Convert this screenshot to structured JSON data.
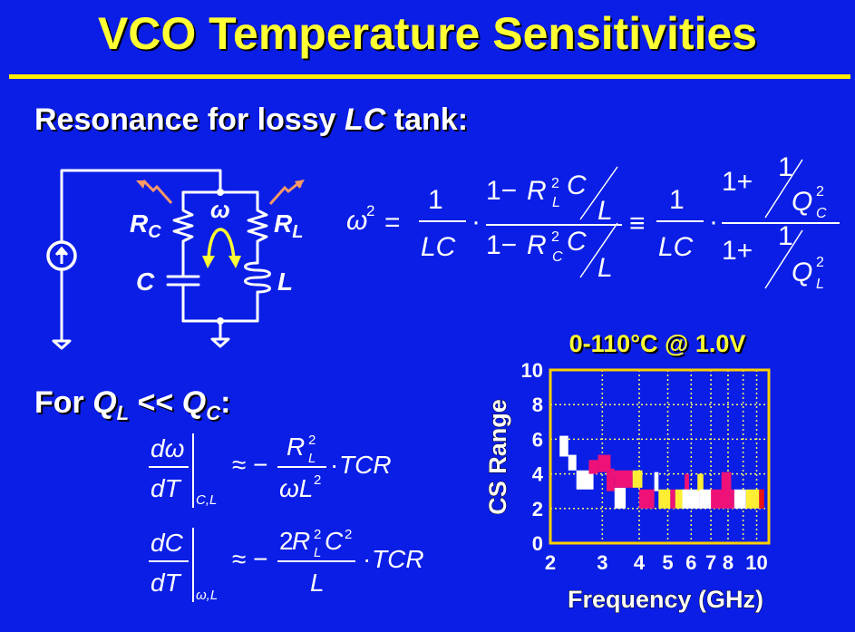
{
  "slide": {
    "title": "VCO Temperature Sensitivities",
    "heading_pre": "Resonance for lossy ",
    "heading_lc": "LC",
    "heading_post": " tank:",
    "for_pre": "For ",
    "for_q": "Q",
    "for_ql_sub": "L",
    "for_mid": " << ",
    "for_qc_sub": "C",
    "for_post": ":"
  },
  "circuit": {
    "rc_main": "R",
    "rc_sub": "C",
    "rl_main": "R",
    "rl_sub": "L",
    "omega": "ω",
    "c_label": "C",
    "l_label": "L"
  },
  "colors": {
    "background": "#0a1ee6",
    "title": "#ffff33",
    "rule": "#ffee00",
    "heat_arrow": "#ff9966",
    "omega_arrow": "#ffff33",
    "chart_border": "#ffd000",
    "chart_grid": "#ffff66"
  },
  "chart_data": {
    "type": "heatmap",
    "title": "0-110°C @ 1.0V",
    "xlabel": "Frequency (GHz)",
    "ylabel": "CS Range",
    "x_scale": "log",
    "xlim": [
      2,
      11
    ],
    "ylim": [
      0,
      10
    ],
    "x_ticks": [
      2,
      3,
      4,
      5,
      6,
      7,
      8,
      10
    ],
    "y_ticks": [
      0,
      2,
      4,
      6,
      8,
      10
    ],
    "grid": true,
    "legend": "none",
    "cells": [
      {
        "f0": 2.15,
        "f1": 2.3,
        "y0": 5.0,
        "y1": 6.2,
        "color": "white"
      },
      {
        "f0": 2.3,
        "f1": 2.45,
        "y0": 4.2,
        "y1": 5.1,
        "color": "white"
      },
      {
        "f0": 2.45,
        "f1": 2.8,
        "y0": 3.1,
        "y1": 4.2,
        "color": "white"
      },
      {
        "f0": 2.7,
        "f1": 2.9,
        "y0": 4.0,
        "y1": 4.8,
        "color": "magenta"
      },
      {
        "f0": 2.9,
        "f1": 3.2,
        "y0": 4.1,
        "y1": 5.1,
        "color": "magenta"
      },
      {
        "f0": 3.1,
        "f1": 3.3,
        "y0": 3.0,
        "y1": 4.3,
        "color": "magenta"
      },
      {
        "f0": 3.3,
        "f1": 3.6,
        "y0": 2.0,
        "y1": 3.2,
        "color": "white"
      },
      {
        "f0": 3.3,
        "f1": 3.8,
        "y0": 3.2,
        "y1": 4.2,
        "color": "magenta"
      },
      {
        "f0": 3.8,
        "f1": 4.1,
        "y0": 3.2,
        "y1": 4.2,
        "color": "yellow"
      },
      {
        "f0": 4.0,
        "f1": 4.5,
        "y0": 2.0,
        "y1": 3.1,
        "color": "magenta"
      },
      {
        "f0": 4.5,
        "f1": 4.65,
        "y0": 3.0,
        "y1": 4.1,
        "color": "white"
      },
      {
        "f0": 4.65,
        "f1": 5.1,
        "y0": 2.0,
        "y1": 3.1,
        "color": "yellow"
      },
      {
        "f0": 5.1,
        "f1": 5.3,
        "y0": 2.0,
        "y1": 3.1,
        "color": "magenta"
      },
      {
        "f0": 5.3,
        "f1": 5.7,
        "y0": 2.0,
        "y1": 3.1,
        "color": "yellow"
      },
      {
        "f0": 5.7,
        "f1": 5.9,
        "y0": 3.0,
        "y1": 4.0,
        "color": "magenta"
      },
      {
        "f0": 5.6,
        "f1": 6.4,
        "y0": 2.0,
        "y1": 3.1,
        "color": "white"
      },
      {
        "f0": 6.3,
        "f1": 6.6,
        "y0": 3.0,
        "y1": 4.0,
        "color": "yellow"
      },
      {
        "f0": 6.4,
        "f1": 7.1,
        "y0": 2.0,
        "y1": 3.1,
        "color": "white"
      },
      {
        "f0": 7.0,
        "f1": 8.4,
        "y0": 2.0,
        "y1": 3.1,
        "color": "magenta"
      },
      {
        "f0": 7.6,
        "f1": 8.2,
        "y0": 3.0,
        "y1": 4.1,
        "color": "magenta"
      },
      {
        "f0": 8.4,
        "f1": 9.2,
        "y0": 2.0,
        "y1": 3.1,
        "color": "white"
      },
      {
        "f0": 9.2,
        "f1": 10.2,
        "y0": 2.0,
        "y1": 3.1,
        "color": "yellow"
      },
      {
        "f0": 10.2,
        "f1": 10.6,
        "y0": 2.0,
        "y1": 3.1,
        "color": "red"
      }
    ]
  }
}
